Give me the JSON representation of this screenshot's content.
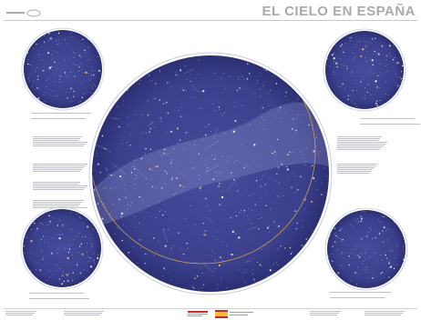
{
  "header": {
    "title": "EL CIELO EN ESPAÑA"
  },
  "colors": {
    "sky": "#3b3f8c",
    "sky_edge": "#2c2f73",
    "stars": "#ffffff",
    "milky_way": "#8a8fc9",
    "ecliptic": "#d7a84a",
    "title_gray": "#a9a9ad"
  },
  "maps": [
    {
      "id": "main-sky-map"
    },
    {
      "id": "small-map-top-left"
    },
    {
      "id": "small-map-top-right"
    },
    {
      "id": "small-map-bottom-left"
    },
    {
      "id": "small-map-bottom-right"
    }
  ],
  "icons": [
    "logo-icon",
    "spain-flag-icon",
    "crest-icon"
  ]
}
